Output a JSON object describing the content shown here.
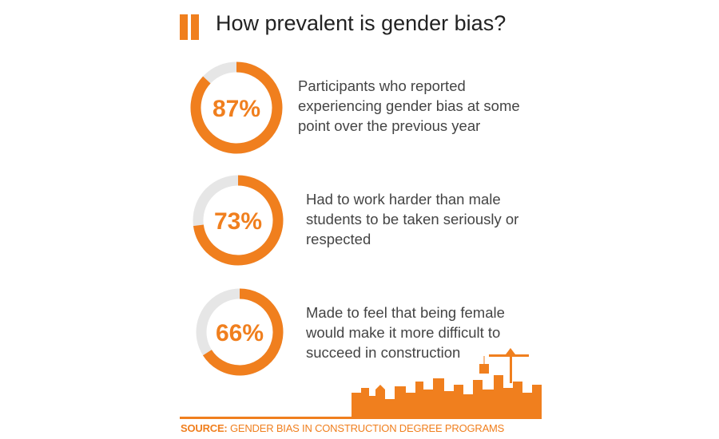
{
  "title": "How prevalent is gender bias?",
  "chart_data": [
    {
      "type": "donut",
      "values": [
        87
      ],
      "value_labels": [
        "87%"
      ],
      "color": "#f07f1e",
      "track_color": "#e6e6e6",
      "description": "Participants who reported experiencing gender bias at some point over the previous year"
    },
    {
      "type": "donut",
      "values": [
        73
      ],
      "value_labels": [
        "73%"
      ],
      "color": "#f07f1e",
      "track_color": "#e6e6e6",
      "description": "Had to work harder than male students to be taken seriously or respected"
    },
    {
      "type": "donut",
      "values": [
        66
      ],
      "value_labels": [
        "66%"
      ],
      "color": "#f07f1e",
      "track_color": "#e6e6e6",
      "description": "Made to feel that being female would make it more difficult to succeed in construction"
    }
  ],
  "source": {
    "label": "SOURCE:",
    "text": "GENDER BIAS IN CONSTRUCTION DEGREE PROGRAMS"
  }
}
